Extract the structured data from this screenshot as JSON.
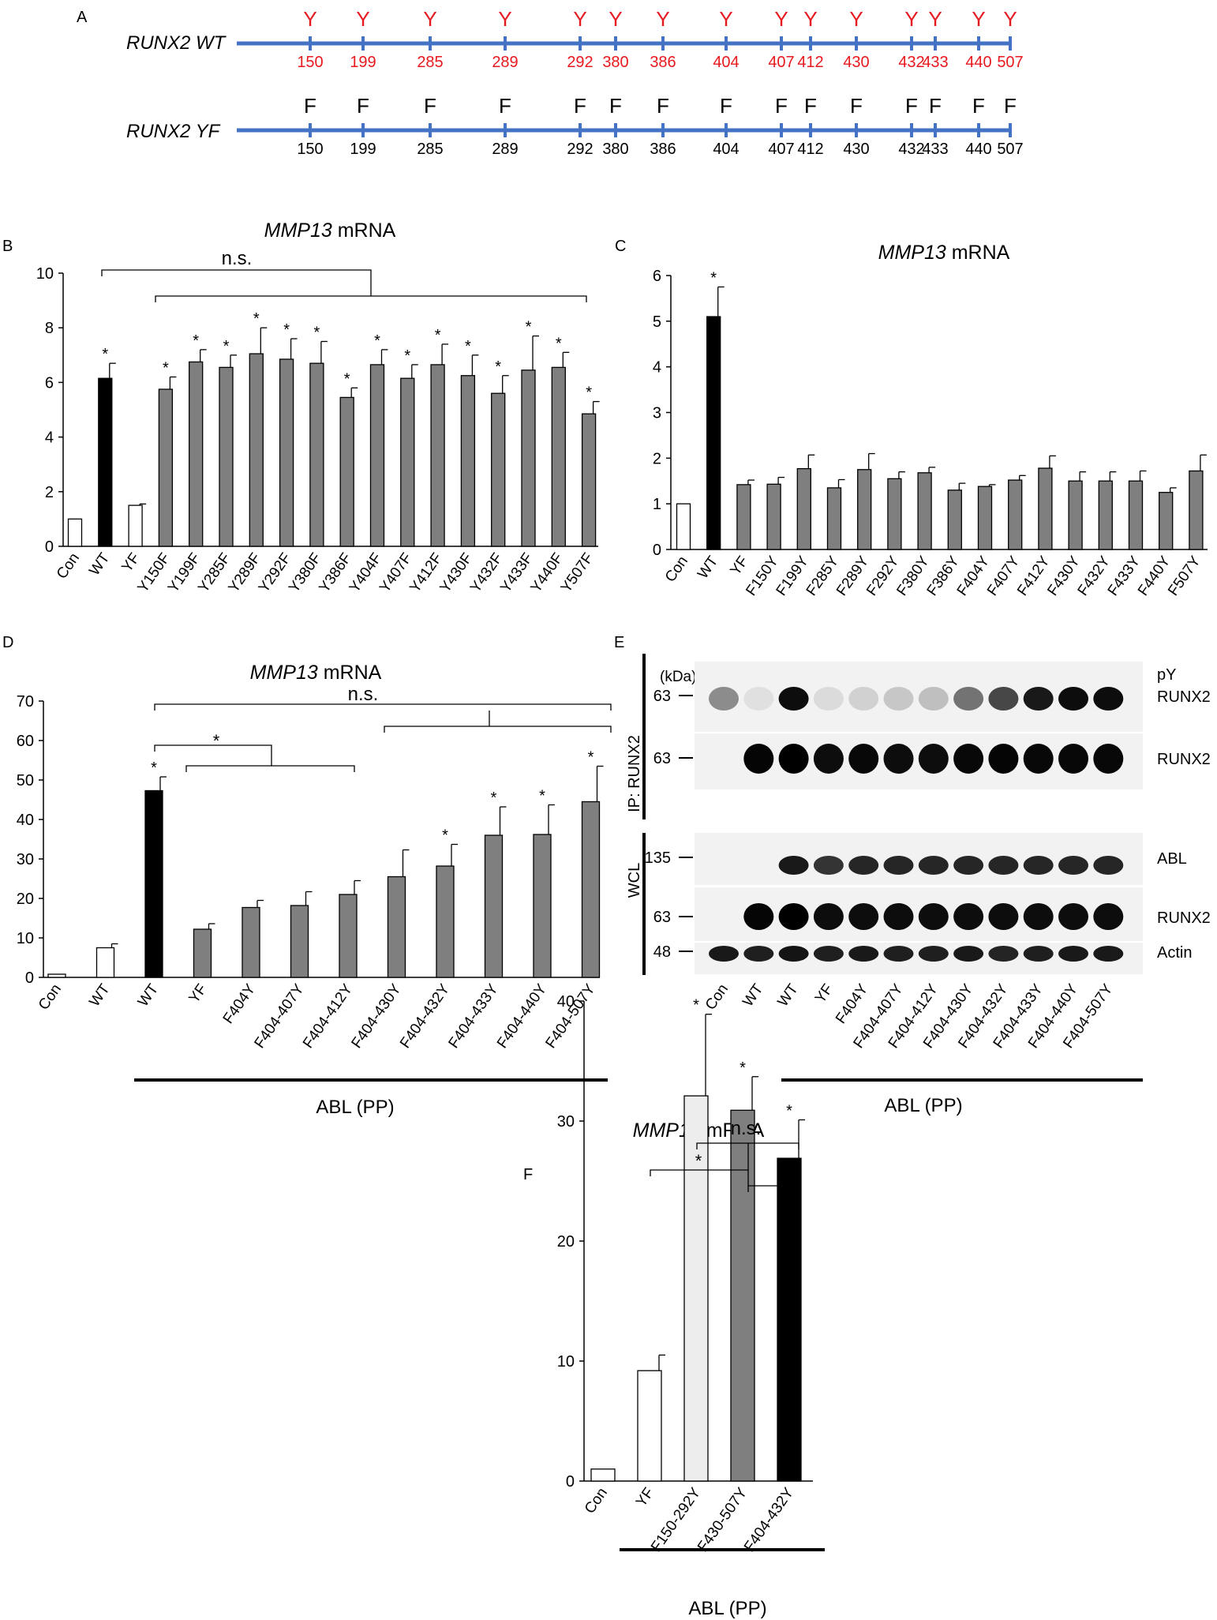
{
  "panel_a": {
    "letter": "A",
    "positions": [
      "150",
      "199",
      "285",
      "289",
      "292",
      "380",
      "386",
      "404",
      "407",
      "412",
      "430",
      "432",
      "433",
      "440",
      "507"
    ],
    "wt": {
      "label": "RUNX2 WT",
      "residue": "Y",
      "color": "#e8191e"
    },
    "yf": {
      "label": "RUNX2 YF",
      "residue": "F",
      "color": "#000000"
    },
    "line_color": "#4472c4"
  },
  "panel_e": {
    "letter": "E",
    "kda_label": "(kDa)",
    "ip_label": "IP: RUNX2",
    "wcl_label": "WCL",
    "blots": [
      {
        "name": "pY RUNX2",
        "label_line1": "pY",
        "label_line2": "RUNX2",
        "marker": "63",
        "intensity": [
          0.45,
          0.12,
          0.95,
          0.14,
          0.18,
          0.22,
          0.25,
          0.55,
          0.72,
          0.9,
          0.95,
          0.95
        ]
      },
      {
        "name": "RUNX2",
        "label_line1": "",
        "label_line2": "RUNX2",
        "marker": "63",
        "intensity": [
          0.0,
          0.98,
          1.0,
          0.95,
          0.97,
          0.95,
          0.95,
          0.97,
          0.98,
          0.97,
          0.97,
          0.97
        ]
      },
      {
        "name": "ABL",
        "label_line1": "",
        "label_line2": "ABL",
        "marker": "135",
        "intensity": [
          0.0,
          0.0,
          0.9,
          0.8,
          0.85,
          0.85,
          0.85,
          0.85,
          0.85,
          0.85,
          0.85,
          0.85
        ]
      },
      {
        "name": "RUNX2",
        "label_line1": "",
        "label_line2": "RUNX2",
        "marker": "63",
        "intensity": [
          0.0,
          0.98,
          1.0,
          0.95,
          0.95,
          0.95,
          0.95,
          0.95,
          0.95,
          0.95,
          0.95,
          0.95
        ]
      },
      {
        "name": "Actin",
        "label_line1": "",
        "label_line2": "Actin",
        "marker": "48",
        "intensity": [
          0.9,
          0.88,
          0.92,
          0.88,
          0.9,
          0.88,
          0.88,
          0.9,
          0.86,
          0.88,
          0.9,
          0.9
        ]
      }
    ],
    "lanes": [
      "Con",
      "WT",
      "WT",
      "YF",
      "F404Y",
      "F404-407Y",
      "F404-412Y",
      "F404-430Y",
      "F404-432Y",
      "F404-433Y",
      "F404-440Y",
      "F404-507Y"
    ],
    "abl_label": "ABL (PP)"
  },
  "chart_data": [
    {
      "panel": "B",
      "type": "bar",
      "title_gene": "MMP13",
      "title_rest": " mRNA",
      "categories": [
        "Con",
        "WT",
        "YF",
        "Y150F",
        "Y199F",
        "Y285F",
        "Y289F",
        "Y292F",
        "Y380F",
        "Y386F",
        "Y404F",
        "Y407F",
        "Y412F",
        "Y430F",
        "Y432F",
        "Y433F",
        "Y440F",
        "Y507F"
      ],
      "values": [
        1.0,
        6.15,
        1.5,
        5.75,
        6.75,
        6.55,
        7.05,
        6.85,
        6.7,
        5.45,
        6.65,
        6.15,
        6.65,
        6.25,
        5.6,
        6.45,
        6.55,
        4.85
      ],
      "errors": [
        0,
        0.55,
        0.05,
        0.45,
        0.45,
        0.45,
        0.95,
        0.75,
        0.8,
        0.35,
        0.55,
        0.5,
        0.75,
        0.75,
        0.65,
        1.25,
        0.55,
        0.45
      ],
      "significant": [
        false,
        true,
        false,
        true,
        true,
        true,
        true,
        true,
        true,
        true,
        true,
        true,
        true,
        true,
        true,
        true,
        true,
        true
      ],
      "fill": [
        "white",
        "black",
        "white",
        "gray",
        "gray",
        "gray",
        "gray",
        "gray",
        "gray",
        "gray",
        "gray",
        "gray",
        "gray",
        "gray",
        "gray",
        "gray",
        "gray",
        "gray"
      ],
      "ylim": [
        0,
        10
      ],
      "yticks": [
        "0",
        "2",
        "4",
        "6",
        "8",
        "10"
      ],
      "annotation": "n.s.",
      "star": "*"
    },
    {
      "panel": "C",
      "type": "bar",
      "title_gene": "MMP13",
      "title_rest": " mRNA",
      "categories": [
        "Con",
        "WT",
        "YF",
        "F150Y",
        "F199Y",
        "F285Y",
        "F289Y",
        "F292Y",
        "F380Y",
        "F386Y",
        "F404Y",
        "F407Y",
        "F412Y",
        "F430Y",
        "F432Y",
        "F433Y",
        "F440Y",
        "F507Y"
      ],
      "values": [
        1.0,
        5.1,
        1.42,
        1.43,
        1.77,
        1.35,
        1.75,
        1.55,
        1.68,
        1.3,
        1.38,
        1.52,
        1.78,
        1.5,
        1.5,
        1.5,
        1.25,
        1.72
      ],
      "errors": [
        0,
        0.65,
        0.1,
        0.15,
        0.3,
        0.18,
        0.35,
        0.15,
        0.12,
        0.15,
        0.04,
        0.1,
        0.27,
        0.2,
        0.2,
        0.22,
        0.1,
        0.35
      ],
      "significant": [
        false,
        true,
        false,
        false,
        false,
        false,
        false,
        false,
        false,
        false,
        false,
        false,
        false,
        false,
        false,
        false,
        false,
        false
      ],
      "fill": [
        "white",
        "black",
        "gray",
        "gray",
        "gray",
        "gray",
        "gray",
        "gray",
        "gray",
        "gray",
        "gray",
        "gray",
        "gray",
        "gray",
        "gray",
        "gray",
        "gray",
        "gray"
      ],
      "ylim": [
        0,
        6
      ],
      "yticks": [
        "0",
        "1",
        "2",
        "3",
        "4",
        "5",
        "6"
      ],
      "star": "*"
    },
    {
      "panel": "D",
      "type": "bar",
      "title_gene": "MMP13",
      "title_rest": " mRNA",
      "categories": [
        "Con",
        "WT",
        "WT",
        "YF",
        "F404Y",
        "F404-407Y",
        "F404-412Y",
        "F404-430Y",
        "F404-432Y",
        "F404-433Y",
        "F404-440Y",
        "F404-507Y"
      ],
      "values": [
        0.8,
        7.5,
        47.3,
        12.2,
        17.7,
        18.2,
        21.0,
        25.5,
        28.2,
        36.0,
        36.2,
        44.5
      ],
      "errors": [
        0,
        1.0,
        3.5,
        1.4,
        1.8,
        3.5,
        3.5,
        6.8,
        5.5,
        7.2,
        7.5,
        9.0
      ],
      "significant": [
        false,
        false,
        true,
        false,
        false,
        false,
        false,
        false,
        true,
        true,
        true,
        true
      ],
      "fill": [
        "white",
        "white",
        "black",
        "gray",
        "gray",
        "gray",
        "gray",
        "gray",
        "gray",
        "gray",
        "gray",
        "gray"
      ],
      "ylim": [
        0,
        70
      ],
      "yticks": [
        "0",
        "10",
        "20",
        "30",
        "40",
        "50",
        "60",
        "70"
      ],
      "annotation": "n.s.",
      "star": "*",
      "abl_label": "ABL (PP)"
    },
    {
      "panel": "F",
      "type": "bar",
      "title_gene": "MMP13",
      "title_rest": " mRNA",
      "categories": [
        "Con",
        "YF",
        "F150-292Y",
        "F430-507Y",
        "F404-432Y"
      ],
      "values": [
        1.0,
        9.2,
        32.1,
        30.9,
        26.9
      ],
      "errors": [
        0,
        1.3,
        6.8,
        2.8,
        3.2
      ],
      "significant": [
        false,
        false,
        true,
        true,
        true
      ],
      "fill": [
        "white",
        "white",
        "lightgray",
        "gray",
        "black"
      ],
      "ylim": [
        0,
        40
      ],
      "yticks": [
        "0",
        "10",
        "20",
        "30",
        "40"
      ],
      "annotation": "n.s.",
      "star": "*",
      "abl_label": "ABL (PP)"
    }
  ]
}
